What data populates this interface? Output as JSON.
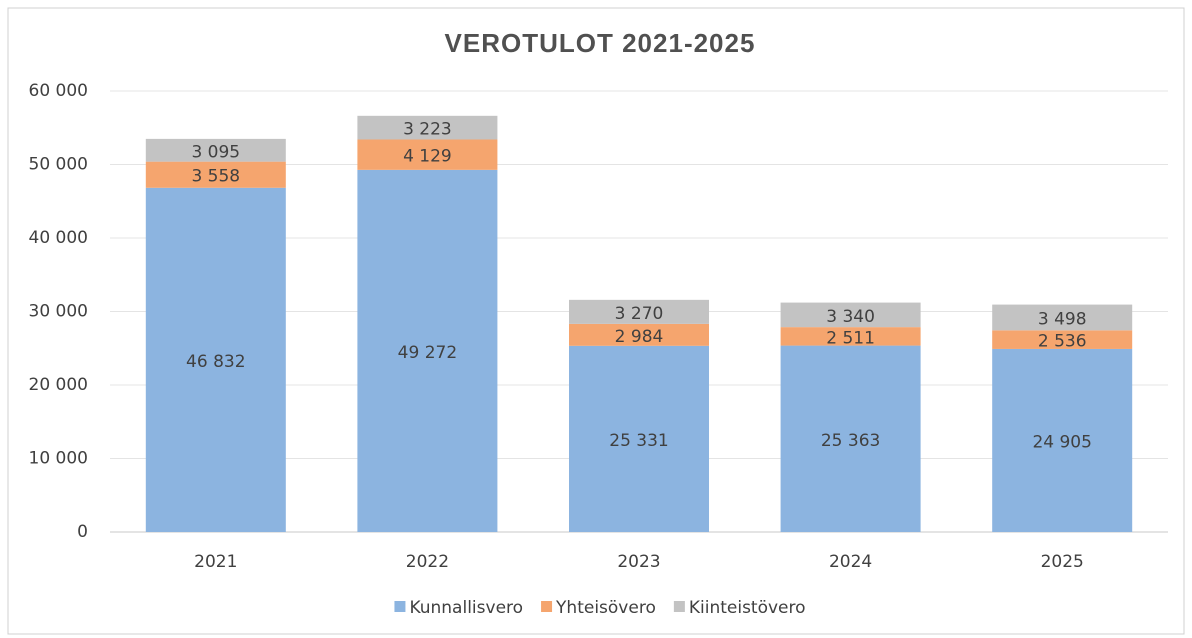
{
  "chart_data": {
    "type": "stacked_bar",
    "title": "VEROTULOT 2021-2025",
    "categories": [
      "2021",
      "2022",
      "2023",
      "2024",
      "2025"
    ],
    "series": [
      {
        "name": "Kunnallisvero",
        "color": "#8cb4e0",
        "values": [
          46832,
          49272,
          25331,
          25363,
          24905
        ],
        "value_labels": [
          "46 832",
          "49 272",
          "25 331",
          "25 363",
          "24 905"
        ]
      },
      {
        "name": "Yhteisövero",
        "color": "#f5a56e",
        "values": [
          3558,
          4129,
          2984,
          2511,
          2536
        ],
        "value_labels": [
          "3 558",
          "4 129",
          "2 984",
          "2 511",
          "2 536"
        ]
      },
      {
        "name": "Kiinteistövero",
        "color": "#c3c3c3",
        "values": [
          3095,
          3223,
          3270,
          3340,
          3498
        ],
        "value_labels": [
          "3 095",
          "3 223",
          "3 270",
          "3 340",
          "3 498"
        ]
      }
    ],
    "ylim": [
      0,
      60000
    ],
    "yticks": [
      0,
      {
        "value": 10000,
        "label": "10 000"
      },
      {
        "value": 20000,
        "label": "20 000"
      },
      {
        "value": 30000,
        "label": "30 000"
      },
      {
        "value": 40000,
        "label": "40 000"
      },
      {
        "value": 50000,
        "label": "50 000"
      },
      {
        "value": 60000,
        "label": "60 000"
      }
    ],
    "grid": true,
    "legend": "bottom"
  }
}
